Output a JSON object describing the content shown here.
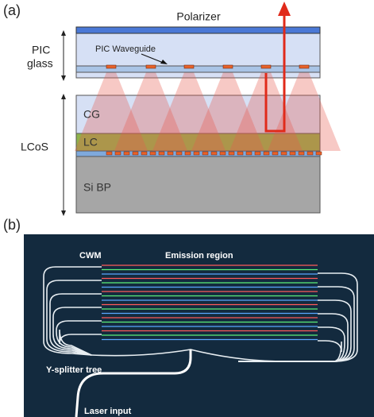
{
  "panel_a": {
    "label": "(a)",
    "polarizer": "Polarizer",
    "pic_glass": {
      "line1": "PIC",
      "line2": "glass"
    },
    "waveguide": "PIC Waveguide",
    "cg": "CG",
    "lc": "LC",
    "lcos": "LCoS",
    "si_bp": "Si BP"
  },
  "panel_b": {
    "label": "(b)",
    "cwm": "CWM",
    "emission": "Emission region",
    "splitter": "Y-splitter tree",
    "laser": "Laser input"
  }
}
